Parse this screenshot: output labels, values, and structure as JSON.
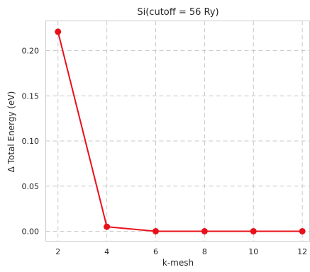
{
  "chart_data": {
    "type": "line",
    "title": "Si(cutoff = 56 Ry)",
    "xlabel": "k-mesh",
    "ylabel": "Δ Total Energy (eV)",
    "x": [
      2,
      4,
      6,
      8,
      10,
      12
    ],
    "series": [
      {
        "values": [
          0.221,
          0.005,
          0.0,
          0.0,
          0.0,
          0.0
        ],
        "color": "#e8111a"
      }
    ],
    "xticks": [
      2,
      4,
      6,
      8,
      10,
      12
    ],
    "yticks": [
      0.0,
      0.05,
      0.1,
      0.15,
      0.2
    ],
    "ytick_labels": [
      "0.00",
      "0.05",
      "0.10",
      "0.15",
      "0.20"
    ],
    "xlim": [
      1.5,
      12.3
    ],
    "ylim": [
      -0.011,
      0.233
    ],
    "grid": true,
    "marker": "circle",
    "colors": {
      "line": "#e8111a",
      "grid": "#c8c8c8",
      "frame": "#cccccc"
    }
  }
}
